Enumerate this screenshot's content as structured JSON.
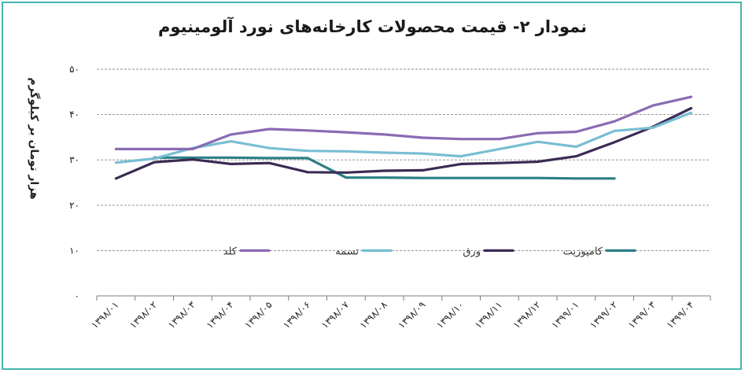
{
  "chart_data": {
    "type": "line",
    "title": "نمودار ۲- قیمت محصولات کارخانه‌های نورد آلومینیوم",
    "ylabel": "هزار تومان بر کیلوگرم",
    "xlabel": "",
    "ylim": [
      0,
      50
    ],
    "y_ticks": [
      "۰",
      "۱۰",
      "۲۰",
      "۳۰",
      "۴۰",
      "۵۰"
    ],
    "grid": "horizontal",
    "legend_position": "inside-middle",
    "categories": [
      "۱۳۹۸/۰۱",
      "۱۳۹۸/۰۲",
      "۱۳۹۸/۰۳",
      "۱۳۹۸/۰۴",
      "۱۳۹۸/۰۵",
      "۱۳۹۸/۰۶",
      "۱۳۹۸/۰۷",
      "۱۳۹۸/۰۸",
      "۱۳۹۸/۰۹",
      "۱۳۹۸/۱۰",
      "۱۳۹۸/۱۱",
      "۱۳۹۸/۱۲",
      "۱۳۹۹/۰۱",
      "۱۳۹۹/۰۲",
      "۱۳۹۹/۰۳",
      "۱۳۹۹/۰۴"
    ],
    "series": [
      {
        "name": "کامپوزیت",
        "color": "#2c7f87",
        "values": [
          null,
          30.5,
          30.5,
          30.5,
          30.4,
          30.4,
          26.1,
          26.1,
          26.0,
          26.0,
          26.0,
          26.0,
          25.9,
          25.9,
          null,
          null
        ]
      },
      {
        "name": "ورق",
        "color": "#3b2b55",
        "values": [
          25.9,
          29.5,
          30.1,
          29.1,
          29.3,
          27.3,
          27.2,
          27.6,
          27.7,
          29.1,
          29.3,
          29.6,
          30.8,
          33.9,
          37.3,
          41.4
        ]
      },
      {
        "name": "تسمه",
        "color": "#79bed3",
        "values": [
          29.4,
          30.3,
          32.6,
          34.1,
          32.6,
          32.0,
          31.9,
          31.6,
          31.4,
          30.8,
          32.4,
          34.0,
          32.9,
          36.4,
          37.1,
          40.4
        ]
      },
      {
        "name": "کلد",
        "color": "#8a6bb3",
        "values": [
          32.4,
          32.4,
          32.4,
          35.6,
          36.8,
          36.5,
          36.1,
          35.6,
          34.9,
          34.6,
          34.6,
          35.9,
          36.2,
          38.5,
          42.0,
          43.9
        ]
      }
    ]
  }
}
